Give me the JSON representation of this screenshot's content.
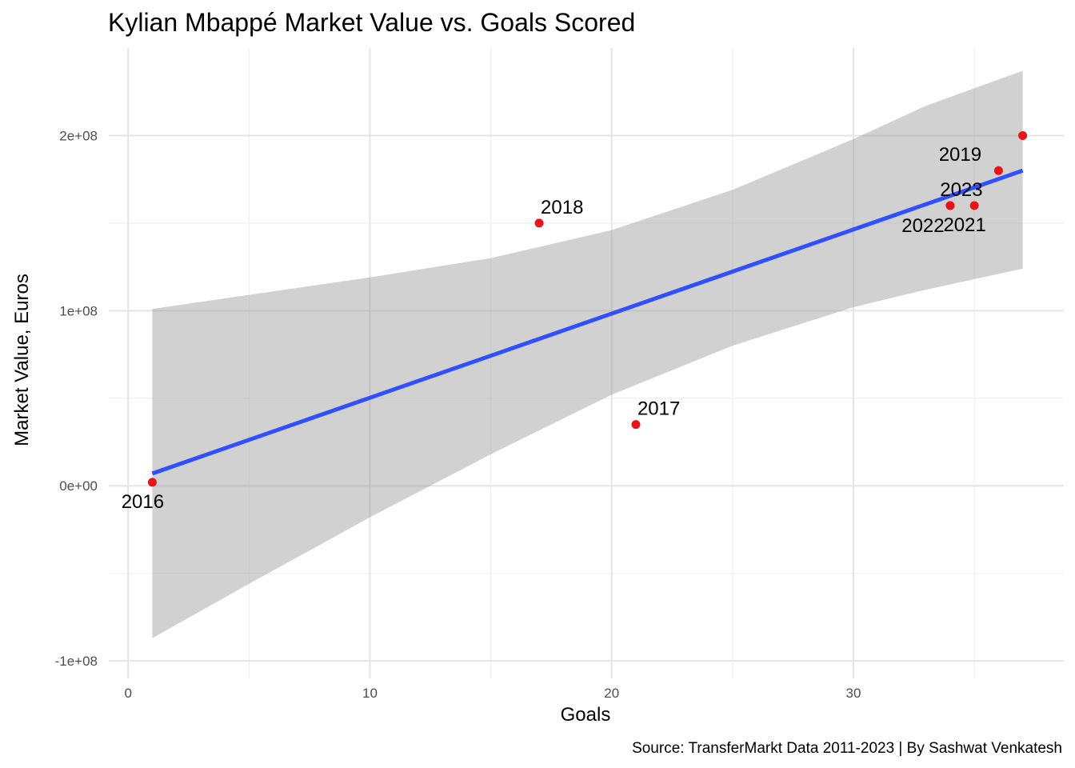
{
  "chart_data": {
    "type": "scatter",
    "title": "Kylian Mbappé Market Value vs. Goals Scored",
    "xlabel": "Goals",
    "ylabel": "Market Value, Euros",
    "caption": "Source: TransferMarkt Data 2011-2023 | By Sashwat Venkatesh",
    "xlim": [
      -0.8,
      38.7
    ],
    "ylim": [
      -110000000,
      250000000
    ],
    "x_ticks": [
      0,
      10,
      20,
      30
    ],
    "x_tick_labels": [
      "0",
      "10",
      "20",
      "30"
    ],
    "x_minor_ticks": [
      5,
      15,
      25,
      35
    ],
    "y_ticks": [
      -100000000,
      0,
      100000000,
      200000000
    ],
    "y_tick_labels": [
      "-1e+08",
      "0e+00",
      "1e+08",
      "2e+08"
    ],
    "y_minor_ticks": [
      -50000000,
      50000000,
      150000000
    ],
    "grid": true,
    "points": [
      {
        "x": 1,
        "y": 2000000,
        "label": "2016",
        "label_pos": "below"
      },
      {
        "x": 21,
        "y": 35000000,
        "label": "2017",
        "label_pos": "above-right"
      },
      {
        "x": 17,
        "y": 150000000,
        "label": "2018",
        "label_pos": "above-right"
      },
      {
        "x": 36,
        "y": 180000000,
        "label": "2019",
        "label_pos": "above-left"
      },
      {
        "x": 37,
        "y": 200000000,
        "label": "",
        "label_pos": "none"
      },
      {
        "x": 35,
        "y": 160000000,
        "label": "2021",
        "label_pos": "below"
      },
      {
        "x": 34,
        "y": 160000000,
        "label": "2022",
        "label_pos": "below-left"
      },
      {
        "x": 34,
        "y": 160000000,
        "label": "2023",
        "label_pos": "above"
      }
    ],
    "fit": {
      "method": "lm",
      "x_range": [
        1,
        37
      ],
      "line": [
        [
          1,
          7000000
        ],
        [
          37,
          180000000
        ]
      ],
      "band": [
        {
          "x": 1,
          "lower": -87000000,
          "upper": 101000000
        },
        {
          "x": 5,
          "lower": -56000000,
          "upper": 109000000
        },
        {
          "x": 10,
          "lower": -18000000,
          "upper": 119000000
        },
        {
          "x": 15,
          "lower": 18000000,
          "upper": 130000000
        },
        {
          "x": 20,
          "lower": 52000000,
          "upper": 146000000
        },
        {
          "x": 25,
          "lower": 80000000,
          "upper": 169000000
        },
        {
          "x": 30,
          "lower": 102000000,
          "upper": 198000000
        },
        {
          "x": 33,
          "lower": 112000000,
          "upper": 217000000
        },
        {
          "x": 37,
          "lower": 124000000,
          "upper": 237000000
        }
      ]
    },
    "colors": {
      "point": "#e8141b",
      "line": "#3050ff",
      "band": "#999999",
      "grid": "#e5e5e5",
      "grid_minor": "#f0f0f0"
    }
  }
}
